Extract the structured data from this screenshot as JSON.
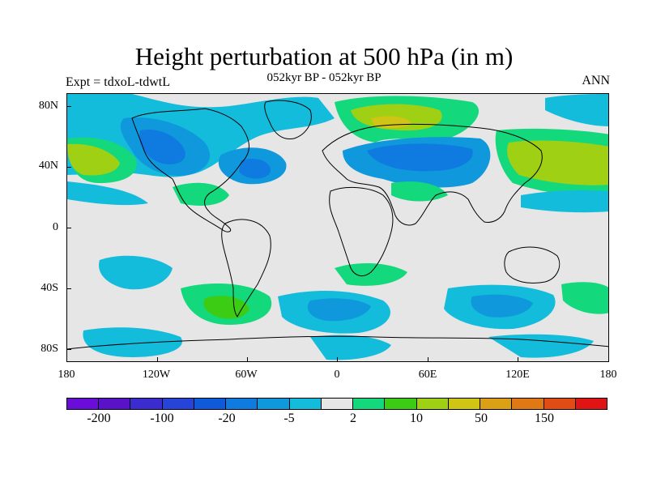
{
  "header": {
    "title": "Height perturbation at 500 hPa (in m)",
    "subtitle": "052kyr BP - 052kyr BP",
    "left_label": "Expt = tdxoL-tdwtL",
    "right_label": "ANN"
  },
  "map": {
    "lat_ticks": [
      "80N",
      "40N",
      "0",
      "40S",
      "80S"
    ],
    "lon_ticks": [
      "180",
      "120W",
      "60W",
      "0",
      "60E",
      "120E",
      "180"
    ]
  },
  "colorbar": {
    "colors": [
      "#6a0dd8",
      "#5a12c8",
      "#3b2cd0",
      "#2645d8",
      "#0f5ad8",
      "#0f7ae0",
      "#0f98dc",
      "#14bcdc",
      "#e6e6e6",
      "#14d87c",
      "#3ccc14",
      "#a0d014",
      "#d0c414",
      "#dca014",
      "#e07814",
      "#e04c14",
      "#e01414"
    ],
    "labels": [
      "-200",
      "-100",
      "-20",
      "-5",
      "2",
      "10",
      "50",
      "150"
    ]
  }
}
